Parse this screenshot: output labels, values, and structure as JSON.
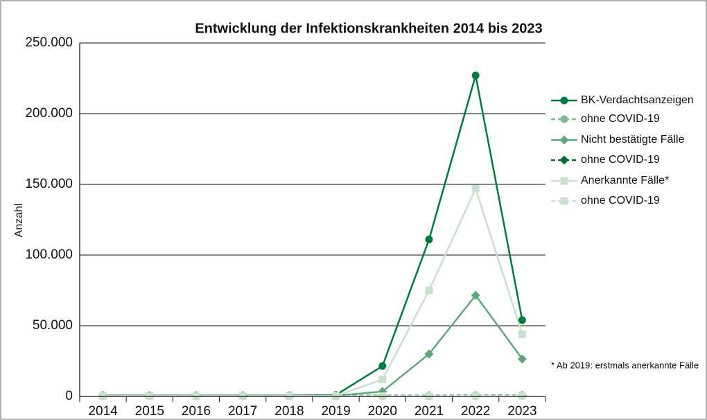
{
  "chart_data": {
    "type": "line",
    "title": "Entwicklung der Infektionskrankheiten 2014 bis 2023",
    "y_label": "Anzahl",
    "footnote": "* Ab 2019: erstmals anerkannte Fälle",
    "categories": [
      "2014",
      "2015",
      "2016",
      "2017",
      "2018",
      "2019",
      "2020",
      "2021",
      "2022",
      "2023"
    ],
    "series": [
      {
        "name": "BK-Verdachtsanzeigen",
        "color": "#007a3d",
        "marker": "circle",
        "dashed": false,
        "values": [
          700,
          700,
          700,
          700,
          700,
          1000,
          21500,
          111000,
          227000,
          54000
        ]
      },
      {
        "name": "ohne COVID-19",
        "color": "#7db894",
        "marker": "circle",
        "dashed": true,
        "values": [
          700,
          700,
          700,
          700,
          700,
          700,
          700,
          700,
          800,
          900
        ]
      },
      {
        "name": "Nicht bestätigte Fälle",
        "color": "#5fa67a",
        "marker": "diamond",
        "dashed": false,
        "values": [
          500,
          500,
          500,
          500,
          500,
          500,
          3500,
          30000,
          71500,
          26500
        ]
      },
      {
        "name": "ohne COVID-19",
        "color": "#006b35",
        "marker": "diamond",
        "dashed": true,
        "values": [
          400,
          400,
          400,
          400,
          400,
          400,
          400,
          400,
          500,
          600
        ]
      },
      {
        "name": "Anerkannte Fälle*",
        "color": "#c9e0cd",
        "marker": "square",
        "dashed": false,
        "values": [
          300,
          300,
          300,
          300,
          300,
          300,
          12000,
          75000,
          147000,
          44000
        ]
      },
      {
        "name": "ohne COVID-19",
        "color": "#c9e0cd",
        "marker": "square",
        "dashed": true,
        "values": [
          300,
          300,
          300,
          300,
          300,
          300,
          300,
          300,
          400,
          500
        ]
      }
    ],
    "ylim": [
      0,
      250000
    ],
    "yticks": [
      0,
      {
        "value": 50000,
        "label": "50.000"
      },
      {
        "value": 100000,
        "label": "100.000"
      },
      {
        "value": 150000,
        "label": "150.000"
      },
      {
        "value": 200000,
        "label": "200.000"
      },
      {
        "value": 250000,
        "label": "250.000"
      }
    ],
    "grid": true
  }
}
